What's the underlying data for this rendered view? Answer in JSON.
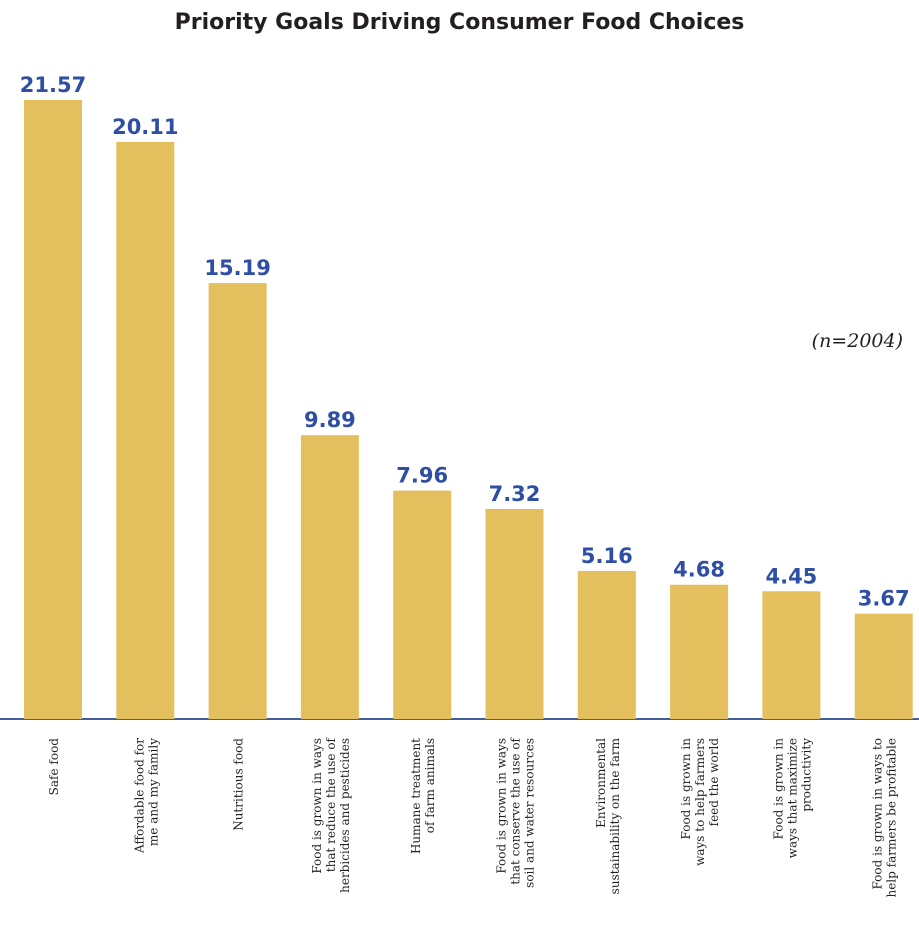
{
  "chart_data": {
    "type": "bar",
    "title": "Priority Goals Driving Consumer Food Choices",
    "annotation": "(n=2004)",
    "categories": [
      [
        "Safe food"
      ],
      [
        "Affordable food for",
        "me and my family"
      ],
      [
        "Nutritious food"
      ],
      [
        "Food is grown in ways",
        "that reduce the use of",
        "herbicides and pesticides"
      ],
      [
        "Humane treatment",
        "of farm animals"
      ],
      [
        "Food is grown in ways",
        "that conserve the use of",
        "soil and water resources"
      ],
      [
        "Environmental",
        "sustainability on the farm"
      ],
      [
        "Food is grown in",
        "ways to help farmers",
        "feed the world"
      ],
      [
        "Food is grown in",
        "ways that maximize",
        "productivity"
      ],
      [
        "Food is grown in ways to",
        "help farmers be profitable"
      ]
    ],
    "values": [
      21.57,
      20.11,
      15.19,
      9.89,
      7.96,
      7.32,
      5.16,
      4.68,
      4.45,
      3.67
    ],
    "value_labels": [
      "21.57",
      "20.11",
      "15.19",
      "9.89",
      "7.96",
      "7.32",
      "5.16",
      "4.68",
      "4.45",
      "3.67"
    ],
    "bar_color": "#e3bf5e",
    "label_color": "#2e4fa3",
    "axis_color": "#3f5f9f",
    "ylim": [
      0,
      21.57
    ]
  }
}
